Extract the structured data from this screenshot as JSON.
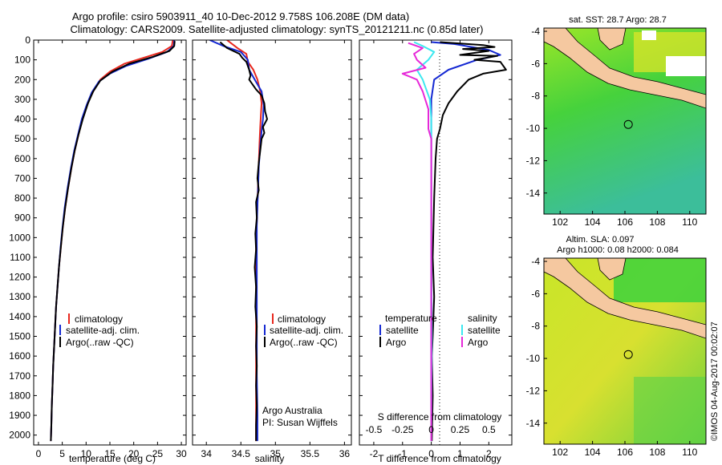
{
  "title": {
    "line1": "Argo profile: csiro 5903911_40 10-Dec-2012 9.758S 106.208E (DM data)",
    "line2": "Climatology: CARS2009. Satellite-adjusted climatology: synTS_20121211.nc (0.85d later)"
  },
  "colors": {
    "climatology": "#e8281e",
    "satellite": "#1428d2",
    "argo": "#000000",
    "sal_satellite": "#3ce8f0",
    "sal_argo": "#e628d8",
    "land": "#f5c8a0",
    "map_green": "#3cd23c",
    "map_yellow": "#d2e628"
  },
  "footer_text": "©IMOS 04-Aug-2017 00:02:07",
  "chart_data": [
    {
      "type": "line",
      "name": "temperature-panel",
      "xlabel": "temperature (deg C)",
      "ylabel": "",
      "xlim": [
        -1,
        31
      ],
      "ylim": [
        2050,
        0
      ],
      "xticks": [
        0,
        5,
        10,
        15,
        20,
        25,
        30
      ],
      "yticks": [
        0,
        100,
        200,
        300,
        400,
        500,
        600,
        700,
        800,
        900,
        1000,
        1100,
        1200,
        1300,
        1400,
        1500,
        1600,
        1700,
        1800,
        1900,
        2000
      ],
      "legend": [
        "climatology",
        "satellite-adj. clim.",
        "Argo(..raw -QC)"
      ],
      "series": [
        {
          "name": "climatology",
          "color": "#e8281e",
          "points": [
            [
              28.2,
              0
            ],
            [
              28,
              30
            ],
            [
              26,
              60
            ],
            [
              22,
              90
            ],
            [
              18,
              120
            ],
            [
              15,
              160
            ],
            [
              13,
              200
            ],
            [
              11.5,
              260
            ],
            [
              10.3,
              320
            ],
            [
              9.2,
              400
            ],
            [
              8.4,
              480
            ],
            [
              7.6,
              560
            ],
            [
              6.9,
              650
            ],
            [
              6.2,
              750
            ],
            [
              5.6,
              850
            ],
            [
              5.1,
              950
            ],
            [
              4.7,
              1050
            ],
            [
              4.3,
              1150
            ],
            [
              4,
              1250
            ],
            [
              3.7,
              1350
            ],
            [
              3.5,
              1450
            ],
            [
              3.3,
              1550
            ],
            [
              3.1,
              1650
            ],
            [
              2.95,
              1750
            ],
            [
              2.8,
              1850
            ],
            [
              2.7,
              1950
            ],
            [
              2.6,
              2030
            ]
          ]
        },
        {
          "name": "satellite-adj. clim.",
          "color": "#1428d2",
          "points": [
            [
              28.5,
              0
            ],
            [
              28.4,
              30
            ],
            [
              27,
              60
            ],
            [
              23,
              95
            ],
            [
              18.5,
              130
            ],
            [
              15,
              170
            ],
            [
              12.7,
              210
            ],
            [
              11.2,
              265
            ],
            [
              10.1,
              330
            ],
            [
              9.1,
              400
            ],
            [
              8.3,
              480
            ],
            [
              7.5,
              560
            ],
            [
              6.8,
              650
            ],
            [
              6.1,
              750
            ],
            [
              5.5,
              850
            ],
            [
              5.05,
              950
            ],
            [
              4.65,
              1050
            ],
            [
              4.3,
              1150
            ],
            [
              4,
              1250
            ],
            [
              3.7,
              1350
            ],
            [
              3.5,
              1450
            ],
            [
              3.3,
              1550
            ],
            [
              3.1,
              1650
            ],
            [
              2.95,
              1750
            ],
            [
              2.8,
              1850
            ],
            [
              2.7,
              1950
            ],
            [
              2.6,
              2030
            ]
          ]
        },
        {
          "name": "Argo(..raw -QC)",
          "color": "#000000",
          "points": [
            [
              28.6,
              5
            ],
            [
              28.5,
              30
            ],
            [
              27.5,
              55
            ],
            [
              24,
              85
            ],
            [
              19,
              120
            ],
            [
              15.5,
              160
            ],
            [
              13,
              205
            ],
            [
              11.5,
              260
            ],
            [
              10.4,
              320
            ],
            [
              9.3,
              400
            ],
            [
              8.4,
              480
            ],
            [
              7.6,
              560
            ],
            [
              6.9,
              650
            ],
            [
              6.2,
              750
            ],
            [
              5.6,
              850
            ],
            [
              5.1,
              950
            ],
            [
              4.7,
              1050
            ],
            [
              4.3,
              1150
            ],
            [
              4,
              1250
            ],
            [
              3.7,
              1350
            ],
            [
              3.5,
              1450
            ],
            [
              3.3,
              1550
            ],
            [
              3.1,
              1650
            ],
            [
              2.95,
              1750
            ],
            [
              2.8,
              1850
            ],
            [
              2.7,
              1950
            ],
            [
              2.6,
              2030
            ]
          ]
        }
      ]
    },
    {
      "type": "line",
      "name": "salinity-panel",
      "xlabel": "salinity",
      "xlim": [
        33.8,
        36.1
      ],
      "ylim": [
        2050,
        0
      ],
      "xticks": [
        34,
        34.5,
        35,
        35.5,
        36
      ],
      "legend": [
        "climatology",
        "satellite-adj. clim.",
        "Argo(..raw -QC)"
      ],
      "credit": [
        "Argo Australia",
        "PI: Susan Wijffels"
      ],
      "series": [
        {
          "name": "climatology",
          "color": "#e8281e",
          "points": [
            [
              34.3,
              0
            ],
            [
              34.45,
              40
            ],
            [
              34.58,
              70
            ],
            [
              34.6,
              110
            ],
            [
              34.68,
              150
            ],
            [
              34.74,
              200
            ],
            [
              34.78,
              260
            ],
            [
              34.8,
              320
            ],
            [
              34.79,
              380
            ],
            [
              34.78,
              440
            ],
            [
              34.77,
              520
            ],
            [
              34.76,
              620
            ],
            [
              34.75,
              720
            ],
            [
              34.74,
              820
            ],
            [
              34.73,
              920
            ],
            [
              34.72,
              1020
            ],
            [
              34.72,
              1200
            ],
            [
              34.72,
              1400
            ],
            [
              34.72,
              1600
            ],
            [
              34.72,
              1800
            ],
            [
              34.72,
              2030
            ]
          ]
        },
        {
          "name": "satellite-adj. clim.",
          "color": "#1428d2",
          "points": [
            [
              34.05,
              0
            ],
            [
              34.25,
              30
            ],
            [
              34.5,
              60
            ],
            [
              34.6,
              100
            ],
            [
              34.62,
              150
            ],
            [
              34.7,
              200
            ],
            [
              34.8,
              260
            ],
            [
              34.83,
              330
            ],
            [
              34.82,
              400
            ],
            [
              34.8,
              460
            ],
            [
              34.78,
              540
            ],
            [
              34.76,
              640
            ],
            [
              34.75,
              740
            ],
            [
              34.74,
              840
            ],
            [
              34.73,
              940
            ],
            [
              34.73,
              1050
            ],
            [
              34.73,
              1300
            ],
            [
              34.73,
              1500
            ],
            [
              34.73,
              1700
            ],
            [
              34.74,
              1900
            ],
            [
              34.74,
              2030
            ]
          ]
        },
        {
          "name": "Argo(..raw -QC)",
          "color": "#000000",
          "points": [
            [
              34.2,
              10
            ],
            [
              34.3,
              40
            ],
            [
              34.48,
              70
            ],
            [
              34.52,
              90
            ],
            [
              34.58,
              110
            ],
            [
              34.62,
              150
            ],
            [
              34.64,
              180
            ],
            [
              34.62,
              200
            ],
            [
              34.66,
              220
            ],
            [
              34.72,
              250
            ],
            [
              34.8,
              280
            ],
            [
              34.84,
              320
            ],
            [
              34.85,
              360
            ],
            [
              34.88,
              400
            ],
            [
              34.82,
              440
            ],
            [
              34.84,
              470
            ],
            [
              34.8,
              500
            ],
            [
              34.78,
              560
            ],
            [
              34.76,
              620
            ],
            [
              34.74,
              700
            ],
            [
              34.76,
              760
            ],
            [
              34.72,
              820
            ],
            [
              34.73,
              900
            ],
            [
              34.71,
              980
            ],
            [
              34.72,
              1060
            ],
            [
              34.7,
              1150
            ],
            [
              34.72,
              1250
            ],
            [
              34.71,
              1350
            ],
            [
              34.73,
              1450
            ],
            [
              34.72,
              1550
            ],
            [
              34.73,
              1650
            ],
            [
              34.72,
              1750
            ],
            [
              34.73,
              1850
            ],
            [
              34.72,
              1950
            ],
            [
              34.72,
              2030
            ]
          ]
        }
      ]
    },
    {
      "type": "line",
      "name": "difference-panel",
      "xlabel": "T difference from climatology",
      "xlabel_top": "S difference from climatology",
      "xlim": [
        -2.5,
        2.8
      ],
      "ylim": [
        2050,
        0
      ],
      "xticks": [
        -2,
        -1,
        0,
        1,
        2
      ],
      "xticks_top": [
        "-0.5",
        "-0.25",
        "0",
        "0.25",
        "0.5"
      ],
      "legend_temperature": {
        "heading": "temperature",
        "items": [
          "satellite",
          "Argo"
        ]
      },
      "legend_salinity": {
        "heading": "salinity",
        "items": [
          "satellite",
          "Argo"
        ]
      },
      "series": [
        {
          "name": "T satellite",
          "color": "#1428d2",
          "points": [
            [
              0,
              10
            ],
            [
              0.8,
              20
            ],
            [
              2,
              50
            ],
            [
              2.4,
              75
            ],
            [
              1.6,
              100
            ],
            [
              0.6,
              150
            ],
            [
              0.1,
              200
            ],
            [
              0,
              300
            ],
            [
              0,
              2030
            ]
          ]
        },
        {
          "name": "T Argo",
          "color": "#000000",
          "points": [
            [
              0.3,
              10
            ],
            [
              1.8,
              25
            ],
            [
              2.2,
              35
            ],
            [
              1.1,
              45
            ],
            [
              2,
              55
            ],
            [
              1,
              75
            ],
            [
              2.3,
              80
            ],
            [
              1.5,
              100
            ],
            [
              2.4,
              110
            ],
            [
              2.6,
              150
            ],
            [
              1.8,
              170
            ],
            [
              1.3,
              200
            ],
            [
              0.9,
              260
            ],
            [
              0.6,
              320
            ],
            [
              0.4,
              380
            ],
            [
              0.3,
              450
            ],
            [
              0.2,
              500
            ],
            [
              0.15,
              600
            ],
            [
              0.1,
              800
            ],
            [
              0.05,
              1100
            ],
            [
              0.1,
              1300
            ],
            [
              0.05,
              1500
            ],
            [
              0.02,
              1600
            ],
            [
              0.05,
              1800
            ],
            [
              0.02,
              2030
            ]
          ]
        },
        {
          "name": "S satellite",
          "color": "#3ce8f0",
          "points": [
            [
              -0.6,
              10
            ],
            [
              -0.3,
              30
            ],
            [
              0.1,
              60
            ],
            [
              -0.1,
              100
            ],
            [
              -0.5,
              150
            ],
            [
              -0.3,
              200
            ],
            [
              -0.05,
              300
            ],
            [
              0,
              400
            ],
            [
              0,
              1000
            ],
            [
              0.02,
              1500
            ],
            [
              0,
              2030
            ]
          ]
        },
        {
          "name": "S Argo",
          "color": "#e628d8",
          "points": [
            [
              -0.8,
              15
            ],
            [
              -0.3,
              40
            ],
            [
              -0.6,
              70
            ],
            [
              -0.5,
              100
            ],
            [
              -0.2,
              140
            ],
            [
              -1,
              170
            ],
            [
              -0.5,
              200
            ],
            [
              -0.3,
              260
            ],
            [
              -0.1,
              350
            ],
            [
              -0.1,
              450
            ],
            [
              0,
              500
            ],
            [
              0,
              1400
            ],
            [
              0,
              2030
            ]
          ]
        }
      ]
    },
    {
      "type": "heatmap",
      "name": "sst-map",
      "title": "sat. SST: 28.7  Argo: 28.7",
      "xlim": [
        101,
        111
      ],
      "ylim": [
        -15.3,
        -3.8
      ],
      "xticks": [
        102,
        104,
        106,
        108,
        110
      ],
      "yticks": [
        -4,
        -6,
        -8,
        -10,
        -12,
        -14
      ],
      "marker": {
        "lon": 106.208,
        "lat": -9.758
      }
    },
    {
      "type": "heatmap",
      "name": "sla-map",
      "title_line1": "Altim. SLA: 0.097",
      "title_line2": "Argo h1000: 0.08 h2000: 0.084",
      "xlim": [
        101,
        111
      ],
      "ylim": [
        -15.3,
        -3.8
      ],
      "xticks": [
        102,
        104,
        106,
        108,
        110
      ],
      "yticks": [
        -4,
        -6,
        -8,
        -10,
        -12,
        -14
      ],
      "marker": {
        "lon": 106.208,
        "lat": -9.758
      }
    }
  ]
}
